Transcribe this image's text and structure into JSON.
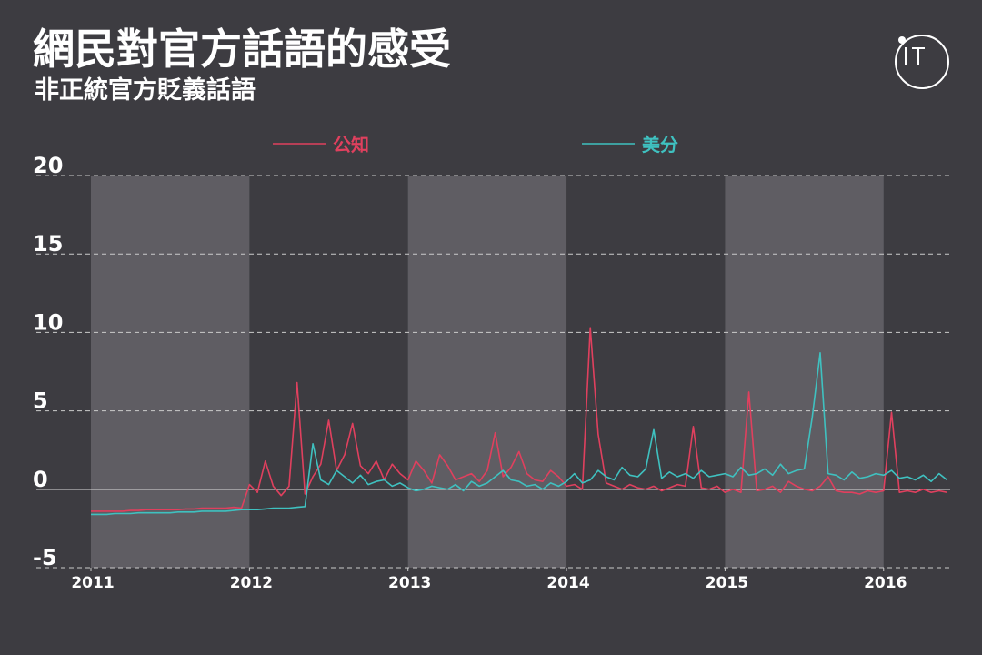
{
  "chart_data": {
    "type": "line",
    "title": "網民對官方話語的感受",
    "subtitle": "非正統官方貶義話語",
    "x": [
      2011.0,
      2011.05,
      2011.1,
      2011.15,
      2011.2,
      2011.25,
      2011.3,
      2011.35,
      2011.4,
      2011.45,
      2011.5,
      2011.55,
      2011.6,
      2011.65,
      2011.7,
      2011.75,
      2011.8,
      2011.85,
      2011.9,
      2011.95,
      2012.0,
      2012.05,
      2012.1,
      2012.15,
      2012.2,
      2012.25,
      2012.3,
      2012.35,
      2012.4,
      2012.45,
      2012.5,
      2012.55,
      2012.6,
      2012.65,
      2012.7,
      2012.75,
      2012.8,
      2012.85,
      2012.9,
      2012.95,
      2013.0,
      2013.05,
      2013.1,
      2013.15,
      2013.2,
      2013.25,
      2013.3,
      2013.35,
      2013.4,
      2013.45,
      2013.5,
      2013.55,
      2013.6,
      2013.65,
      2013.7,
      2013.75,
      2013.8,
      2013.85,
      2013.9,
      2013.95,
      2014.0,
      2014.05,
      2014.1,
      2014.15,
      2014.2,
      2014.25,
      2014.3,
      2014.35,
      2014.4,
      2014.45,
      2014.5,
      2014.55,
      2014.6,
      2014.65,
      2014.7,
      2014.75,
      2014.8,
      2014.85,
      2014.9,
      2014.95,
      2015.0,
      2015.05,
      2015.1,
      2015.15,
      2015.2,
      2015.25,
      2015.3,
      2015.35,
      2015.4,
      2015.45,
      2015.5,
      2015.55,
      2015.6,
      2015.65,
      2015.7,
      2015.75,
      2015.8,
      2015.85,
      2015.9,
      2015.95,
      2016.0,
      2016.05,
      2016.1,
      2016.15,
      2016.2,
      2016.25,
      2016.3,
      2016.35,
      2016.4
    ],
    "series": [
      {
        "name": "公知",
        "color": "#e0405e",
        "values": [
          -1.4,
          -1.4,
          -1.4,
          -1.4,
          -1.4,
          -1.35,
          -1.35,
          -1.3,
          -1.3,
          -1.3,
          -1.3,
          -1.3,
          -1.25,
          -1.25,
          -1.2,
          -1.2,
          -1.2,
          -1.2,
          -1.15,
          -1.2,
          0.3,
          -0.2,
          1.8,
          0.2,
          -0.4,
          0.2,
          6.8,
          -0.3,
          0.8,
          1.6,
          4.4,
          1.2,
          2.2,
          4.2,
          1.5,
          1.0,
          1.8,
          0.6,
          1.6,
          1.0,
          0.6,
          1.8,
          1.2,
          0.4,
          2.2,
          1.5,
          0.6,
          0.8,
          1.0,
          0.5,
          1.2,
          3.6,
          0.8,
          1.4,
          2.4,
          1.0,
          0.6,
          0.5,
          1.2,
          0.8,
          0.2,
          0.3,
          0.0,
          10.3,
          3.5,
          0.4,
          0.2,
          0.0,
          0.3,
          0.1,
          0.0,
          0.2,
          -0.1,
          0.1,
          0.3,
          0.2,
          4.0,
          0.1,
          0.0,
          0.2,
          -0.2,
          0.0,
          -0.2,
          6.2,
          -0.1,
          0.0,
          0.2,
          -0.2,
          0.5,
          0.2,
          0.0,
          -0.1,
          0.2,
          0.8,
          -0.1,
          -0.2,
          -0.2,
          -0.3,
          -0.1,
          -0.2,
          -0.1,
          4.9,
          -0.2,
          -0.1,
          -0.2,
          0.0,
          -0.2,
          -0.1,
          -0.2
        ]
      },
      {
        "name": "美分",
        "color": "#3fc1c0",
        "values": [
          -1.6,
          -1.6,
          -1.6,
          -1.55,
          -1.55,
          -1.55,
          -1.5,
          -1.5,
          -1.5,
          -1.5,
          -1.5,
          -1.45,
          -1.45,
          -1.45,
          -1.4,
          -1.4,
          -1.4,
          -1.4,
          -1.35,
          -1.3,
          -1.3,
          -1.3,
          -1.25,
          -1.2,
          -1.2,
          -1.2,
          -1.15,
          -1.1,
          2.9,
          0.6,
          0.3,
          1.2,
          0.8,
          0.4,
          0.9,
          0.3,
          0.5,
          0.6,
          0.2,
          0.4,
          0.1,
          -0.1,
          0.0,
          0.2,
          0.1,
          0.0,
          0.3,
          -0.1,
          0.5,
          0.2,
          0.4,
          0.8,
          1.2,
          0.6,
          0.5,
          0.2,
          0.3,
          0.0,
          0.4,
          0.2,
          0.5,
          1.0,
          0.4,
          0.6,
          1.2,
          0.8,
          0.6,
          1.4,
          0.9,
          0.8,
          1.3,
          3.8,
          0.7,
          1.1,
          0.8,
          1.0,
          0.7,
          1.2,
          0.8,
          0.9,
          1.0,
          0.8,
          1.4,
          0.9,
          1.0,
          1.3,
          0.9,
          1.6,
          1.0,
          1.2,
          1.3,
          4.6,
          8.7,
          1.0,
          0.9,
          0.6,
          1.1,
          0.7,
          0.8,
          1.0,
          0.9,
          1.2,
          0.7,
          0.8,
          0.6,
          0.9,
          0.5,
          1.0,
          0.6
        ]
      }
    ],
    "xlim": [
      2011,
      2016.42
    ],
    "xticks": [
      2011,
      2012,
      2013,
      2014,
      2015,
      2016
    ],
    "ylim": [
      -5,
      20
    ],
    "yticks": [
      -5,
      0,
      5,
      10,
      15,
      20
    ],
    "grid": true
  }
}
